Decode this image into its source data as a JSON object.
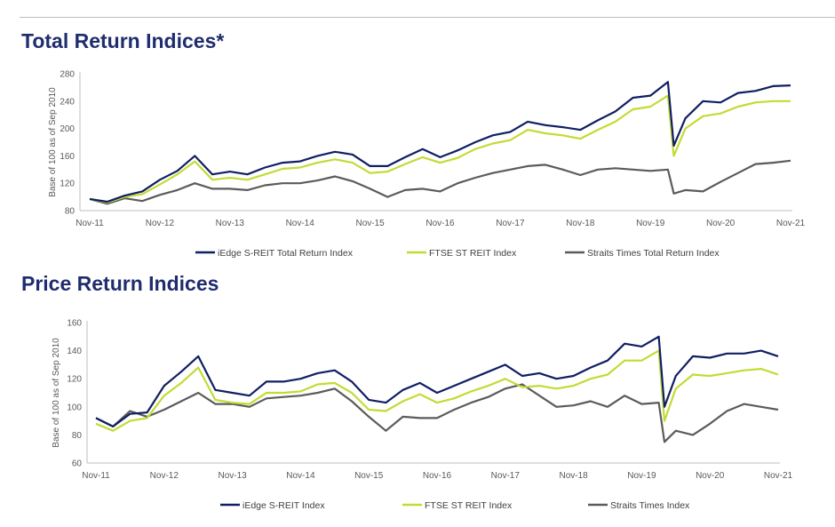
{
  "colors": {
    "iedge": "#0f1f63",
    "ftse": "#c3db34",
    "sti": "#5b5b5b",
    "title": "#1f2d6e"
  },
  "chart_data": [
    {
      "type": "line",
      "title": "Total Return Indices*",
      "ylabel": "Base of 100 as of Sep 2010",
      "ylim": [
        80,
        280
      ],
      "yticks": [
        "80",
        "120",
        "160",
        "200",
        "240",
        "280"
      ],
      "xticks": [
        "Nov-11",
        "Nov-12",
        "Nov-13",
        "Nov-14",
        "Nov-15",
        "Nov-16",
        "Nov-17",
        "Nov-18",
        "Nov-19",
        "Nov-20",
        "Nov-21"
      ],
      "grid": false,
      "legend": "bottom",
      "x": [
        "2011-11",
        "2012-02",
        "2012-05",
        "2012-08",
        "2012-11",
        "2013-02",
        "2013-05",
        "2013-08",
        "2013-11",
        "2014-02",
        "2014-05",
        "2014-08",
        "2014-11",
        "2015-02",
        "2015-05",
        "2015-08",
        "2015-11",
        "2016-02",
        "2016-05",
        "2016-08",
        "2016-11",
        "2017-02",
        "2017-05",
        "2017-08",
        "2017-11",
        "2018-02",
        "2018-05",
        "2018-08",
        "2018-11",
        "2019-02",
        "2019-05",
        "2019-08",
        "2019-11",
        "2020-02",
        "2020-03",
        "2020-05",
        "2020-08",
        "2020-11",
        "2021-02",
        "2021-05",
        "2021-08",
        "2021-11"
      ],
      "series": [
        {
          "name": "iEdge S-REIT Total Return Index",
          "color": "#0f1f63",
          "values": [
            97,
            93,
            102,
            108,
            125,
            138,
            160,
            133,
            137,
            133,
            143,
            150,
            152,
            160,
            166,
            162,
            145,
            145,
            158,
            170,
            158,
            168,
            180,
            190,
            195,
            210,
            205,
            202,
            198,
            212,
            225,
            245,
            248,
            268,
            175,
            215,
            240,
            238,
            252,
            255,
            262,
            263
          ]
        },
        {
          "name": "FTSE ST REIT Index",
          "color": "#c3db34",
          "values": [
            97,
            92,
            100,
            104,
            118,
            133,
            152,
            125,
            128,
            125,
            133,
            141,
            143,
            150,
            155,
            150,
            135,
            137,
            148,
            158,
            150,
            157,
            170,
            178,
            183,
            198,
            193,
            190,
            185,
            198,
            210,
            228,
            232,
            248,
            160,
            200,
            218,
            222,
            232,
            238,
            240,
            240
          ]
        },
        {
          "name": "Straits Times Total Return Index",
          "color": "#5b5b5b",
          "values": [
            97,
            90,
            98,
            94,
            103,
            110,
            120,
            112,
            112,
            110,
            117,
            120,
            120,
            124,
            130,
            123,
            112,
            100,
            110,
            112,
            108,
            120,
            128,
            135,
            140,
            145,
            147,
            140,
            132,
            140,
            142,
            140,
            138,
            140,
            105,
            110,
            108,
            122,
            135,
            148,
            150,
            153
          ]
        }
      ]
    },
    {
      "type": "line",
      "title": "Price Return Indices",
      "ylabel": "Base of 100 as of Sep 2010",
      "ylim": [
        60,
        160
      ],
      "yticks": [
        "60",
        "80",
        "100",
        "120",
        "140",
        "160"
      ],
      "xticks": [
        "Nov-11",
        "Nov-12",
        "Nov-13",
        "Nov-14",
        "Nov-15",
        "Nov-16",
        "Nov-17",
        "Nov-18",
        "Nov-19",
        "Nov-20",
        "Nov-21"
      ],
      "grid": false,
      "legend": "bottom",
      "x": [
        "2011-11",
        "2012-02",
        "2012-05",
        "2012-08",
        "2012-11",
        "2013-02",
        "2013-05",
        "2013-08",
        "2013-11",
        "2014-02",
        "2014-05",
        "2014-08",
        "2014-11",
        "2015-02",
        "2015-05",
        "2015-08",
        "2015-11",
        "2016-02",
        "2016-05",
        "2016-08",
        "2016-11",
        "2017-02",
        "2017-05",
        "2017-08",
        "2017-11",
        "2018-02",
        "2018-05",
        "2018-08",
        "2018-11",
        "2019-02",
        "2019-05",
        "2019-08",
        "2019-11",
        "2020-02",
        "2020-03",
        "2020-05",
        "2020-08",
        "2020-11",
        "2021-02",
        "2021-05",
        "2021-08",
        "2021-11"
      ],
      "series": [
        {
          "name": "iEdge S-REIT Index",
          "color": "#0f1f63",
          "values": [
            92,
            86,
            95,
            96,
            115,
            125,
            136,
            112,
            110,
            108,
            118,
            118,
            120,
            124,
            126,
            118,
            105,
            103,
            112,
            117,
            110,
            115,
            120,
            125,
            130,
            122,
            124,
            120,
            122,
            128,
            133,
            145,
            143,
            150,
            100,
            122,
            136,
            135,
            138,
            138,
            140,
            136
          ]
        },
        {
          "name": "FTSE ST REIT Index",
          "color": "#c3db34",
          "values": [
            88,
            83,
            90,
            92,
            108,
            117,
            128,
            105,
            103,
            102,
            110,
            110,
            111,
            116,
            117,
            110,
            98,
            97,
            104,
            109,
            103,
            106,
            111,
            115,
            120,
            114,
            115,
            113,
            115,
            120,
            123,
            133,
            133,
            140,
            90,
            113,
            123,
            122,
            124,
            126,
            127,
            123
          ]
        },
        {
          "name": "Straits Times Index",
          "color": "#5b5b5b",
          "values": [
            92,
            86,
            97,
            93,
            98,
            104,
            110,
            102,
            102,
            100,
            106,
            107,
            108,
            110,
            113,
            104,
            93,
            83,
            93,
            92,
            92,
            98,
            103,
            107,
            113,
            116,
            108,
            100,
            101,
            104,
            100,
            108,
            102,
            103,
            75,
            83,
            80,
            88,
            97,
            102,
            100,
            98
          ]
        }
      ]
    }
  ]
}
